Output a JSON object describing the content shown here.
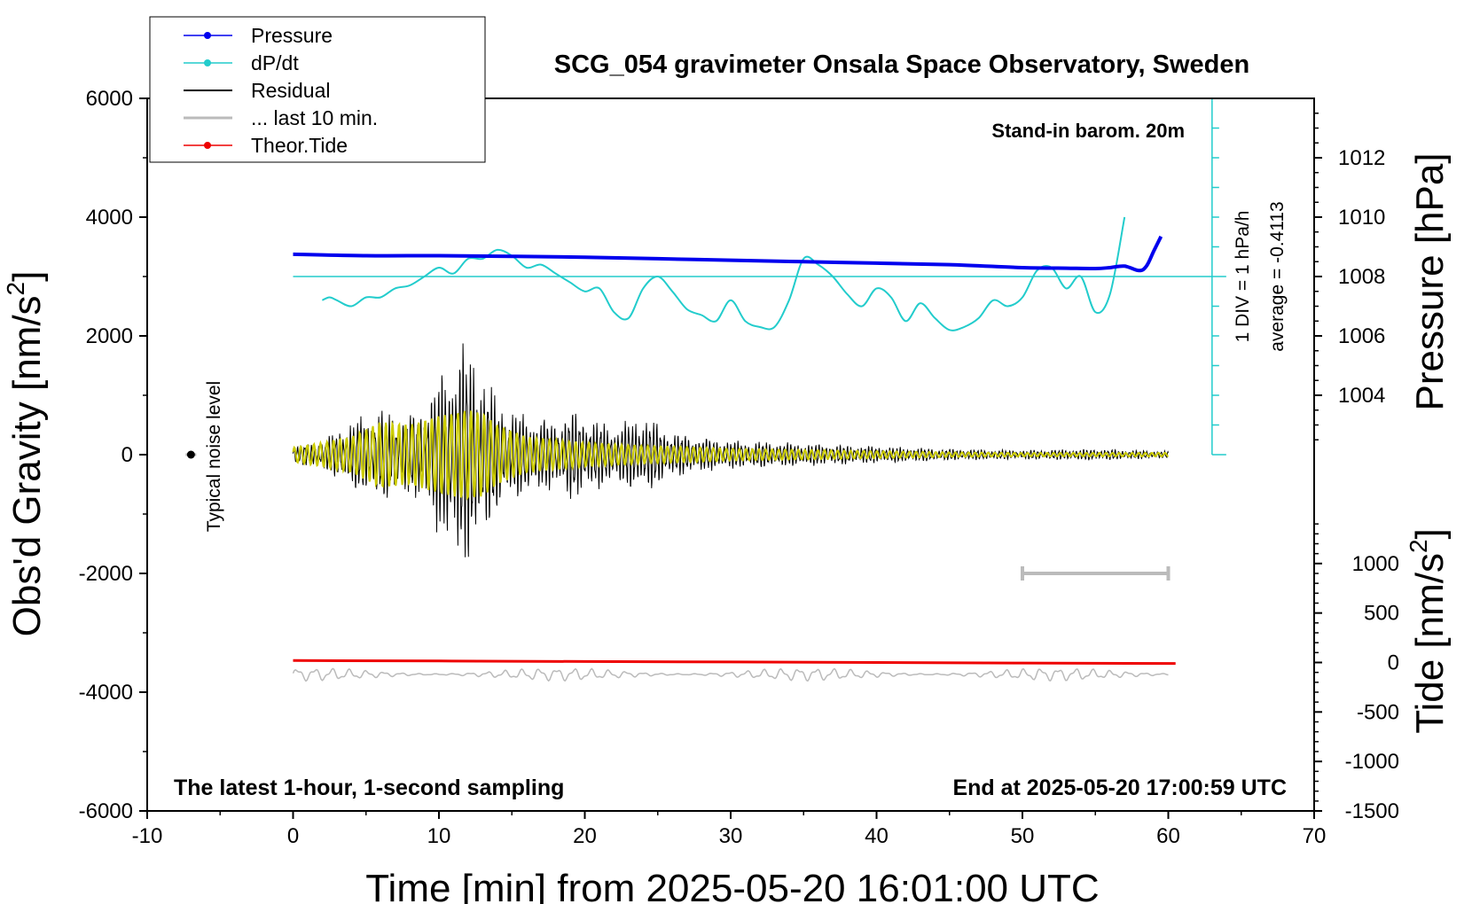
{
  "chart_data": {
    "type": "line",
    "title": "SCG_054 gravimeter Onsala Space Observatory, Sweden",
    "xlabel": "Time [min] from 2025-05-20 16:01:00 UTC",
    "ylabel_left_main": "Obs'd Gravity [nm/s",
    "ylabel_left_sup": "2",
    "ylabel_left_end": "]",
    "ylabel_right_top": "Pressure [hPa]",
    "ylabel_right_bottom_main": "Tide [nm/s",
    "ylabel_right_bottom_sup": "2",
    "ylabel_right_bottom_end": "]",
    "xlim": [
      -10,
      70
    ],
    "ylim_gravity": [
      -6000,
      6000
    ],
    "ylim_pressure": [
      1002,
      1014
    ],
    "ylim_tide": [
      -1500,
      1500
    ],
    "x_ticks": [
      "-10",
      "0",
      "10",
      "20",
      "30",
      "40",
      "50",
      "60",
      "70"
    ],
    "y_ticks_gravity": [
      "-6000",
      "-4000",
      "-2000",
      "0",
      "2000",
      "4000",
      "6000"
    ],
    "y_ticks_pressure": [
      "1004",
      "1006",
      "1008",
      "1010",
      "1012"
    ],
    "y_ticks_tide": [
      "-1500",
      "-1000",
      "-500",
      "0",
      "500",
      "1000"
    ],
    "annotations": {
      "stand_in": "Stand-in barom. 20m",
      "div_label": "1 DIV = 1 hPa/h",
      "average_label": "average = -0.4113",
      "noise_label": "Typical noise level",
      "bottom_left": "The latest 1-hour, 1-second sampling",
      "bottom_right": "End at 2025-05-20 17:00:59 UTC"
    },
    "legend": [
      {
        "label": "Pressure",
        "color": "#0000ee",
        "marker": true
      },
      {
        "label": "dP/dt",
        "color": "#22cccc",
        "marker": true
      },
      {
        "label": "Residual",
        "color": "#000000",
        "marker": false
      },
      {
        "label": "... last 10 min.",
        "color": "#bbbbbb",
        "marker": false
      },
      {
        "label": "Theor.Tide",
        "color": "#ee0000",
        "marker": true
      }
    ],
    "noise_level": {
      "x": -7,
      "y": 0
    },
    "last10_bar": {
      "x_start": 50,
      "x_end": 60,
      "y": -2000
    },
    "dpdt_reference_hpa": 1008,
    "series": [
      {
        "name": "Pressure",
        "axis": "pressure_hpa",
        "color": "#0000ee",
        "x": [
          0,
          5,
          10,
          15,
          20,
          25,
          30,
          35,
          40,
          45,
          50,
          53,
          55,
          56,
          57,
          58,
          58.5,
          59,
          59.5
        ],
        "y": [
          1008.75,
          1008.7,
          1008.7,
          1008.68,
          1008.65,
          1008.6,
          1008.55,
          1008.5,
          1008.45,
          1008.4,
          1008.3,
          1008.28,
          1008.27,
          1008.3,
          1008.35,
          1008.2,
          1008.35,
          1008.85,
          1009.35
        ]
      },
      {
        "name": "dP/dt",
        "axis": "pressure_hpa",
        "color": "#22cccc",
        "x": [
          2,
          2.5,
          3,
          4,
          5,
          6,
          7,
          8,
          9,
          10,
          11,
          12,
          13,
          14,
          15,
          16,
          17,
          18,
          19,
          20,
          21,
          22,
          23,
          24,
          25,
          26,
          27,
          28,
          29,
          30,
          31,
          32,
          33,
          34,
          35,
          36,
          37,
          38,
          39,
          40,
          41,
          42,
          43,
          44,
          45,
          46,
          47,
          48,
          49,
          50,
          51,
          52,
          53,
          54,
          55,
          56,
          57
        ],
        "y": [
          1007.2,
          1007.3,
          1007.2,
          1007.0,
          1007.3,
          1007.3,
          1007.6,
          1007.7,
          1008.0,
          1008.3,
          1008.1,
          1008.6,
          1008.6,
          1008.9,
          1008.7,
          1008.3,
          1008.4,
          1008.1,
          1007.8,
          1007.5,
          1007.6,
          1006.8,
          1006.6,
          1007.6,
          1008.0,
          1007.5,
          1006.9,
          1006.7,
          1006.5,
          1007.2,
          1006.5,
          1006.3,
          1006.3,
          1007.2,
          1008.6,
          1008.4,
          1008.0,
          1007.4,
          1007.0,
          1007.6,
          1007.3,
          1006.5,
          1007.1,
          1006.6,
          1006.2,
          1006.3,
          1006.6,
          1007.2,
          1007.0,
          1007.3,
          1008.2,
          1008.3,
          1007.6,
          1008.0,
          1006.8,
          1007.4,
          1010.0
        ]
      },
      {
        "name": "Residual",
        "axis": "gravity",
        "color": "#000000",
        "x": [
          0,
          2,
          4,
          6,
          8,
          9,
          10,
          11,
          11.5,
          12,
          12.5,
          13,
          14,
          15,
          16,
          18,
          19,
          20,
          22,
          24,
          26,
          28,
          30,
          35,
          40,
          45,
          50,
          55,
          60
        ],
        "amplitude": [
          150,
          250,
          600,
          800,
          700,
          900,
          1400,
          1800,
          2000,
          1900,
          1800,
          1500,
          1000,
          800,
          700,
          600,
          800,
          700,
          500,
          700,
          400,
          300,
          250,
          200,
          150,
          100,
          80,
          100,
          60
        ]
      },
      {
        "name": "Residual filtered",
        "axis": "gravity",
        "color": "#cccc00",
        "x": [
          0,
          2,
          4,
          6,
          8,
          10,
          11,
          12,
          13,
          14,
          16,
          18,
          20,
          24,
          28,
          30,
          35,
          40,
          45,
          50,
          55,
          60
        ],
        "amplitude": [
          120,
          200,
          300,
          550,
          500,
          650,
          700,
          750,
          700,
          500,
          300,
          250,
          200,
          150,
          120,
          100,
          80,
          60,
          40,
          30,
          30,
          30
        ]
      },
      {
        "name": "... last 10 min.",
        "axis": "gravity",
        "color": "#bbbbbb",
        "x": [
          0,
          60
        ],
        "y": [
          -3700,
          -3700
        ],
        "amplitude": [
          80,
          80
        ]
      },
      {
        "name": "Theor.Tide",
        "axis": "tide",
        "color": "#ee0000",
        "x": [
          0,
          10,
          20,
          30,
          40,
          50,
          60.5
        ],
        "y": [
          20,
          15,
          10,
          5,
          0,
          -5,
          -10
        ]
      }
    ]
  }
}
